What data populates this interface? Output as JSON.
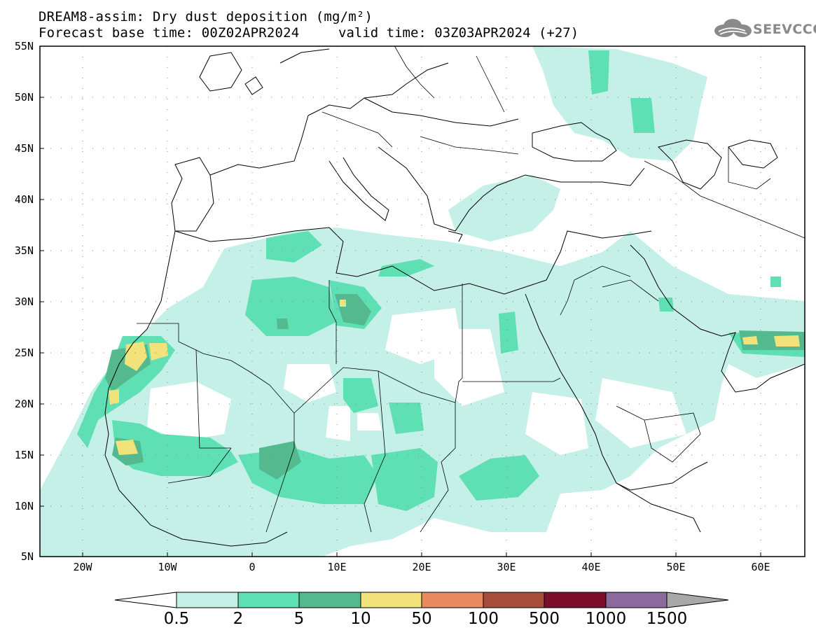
{
  "header": {
    "title": "DREAM8-assim: Dry dust deposition (mg/m²)",
    "forecast_base": "Forecast base time: 00Z02APR2024",
    "valid_time": "valid time: 03Z03APR2024 (+27)",
    "logo_text": "SEEVCCC"
  },
  "map": {
    "latitude_labels": [
      "55N",
      "50N",
      "45N",
      "40N",
      "35N",
      "30N",
      "25N",
      "20N",
      "15N",
      "10N",
      "5N"
    ],
    "longitude_labels": [
      "20W",
      "10W",
      "0",
      "10E",
      "20E",
      "30E",
      "40E",
      "50E",
      "60E"
    ],
    "lat_range": [
      5,
      55
    ],
    "lon_range": [
      -25,
      65
    ],
    "grid": "dotted",
    "coastline_color": "#000000"
  },
  "colorbar": {
    "labels": [
      "0.5",
      "2",
      "5",
      "10",
      "50",
      "100",
      "500",
      "1000",
      "1500"
    ],
    "colors": [
      "#c4f0e8",
      "#5ee0b4",
      "#55b98f",
      "#f2e27a",
      "#e88a5e",
      "#a84c3c",
      "#7e0c2c",
      "#8c6a9e",
      "#a8a8a8"
    ],
    "low_arrow_color": "#ffffff",
    "high_arrow_color": "#a8a8a8"
  },
  "legend_levels": {
    "light": "0.5 - 2",
    "mid": "2 - 5",
    "dark": "5 - 10",
    "high": "10 - 50"
  }
}
